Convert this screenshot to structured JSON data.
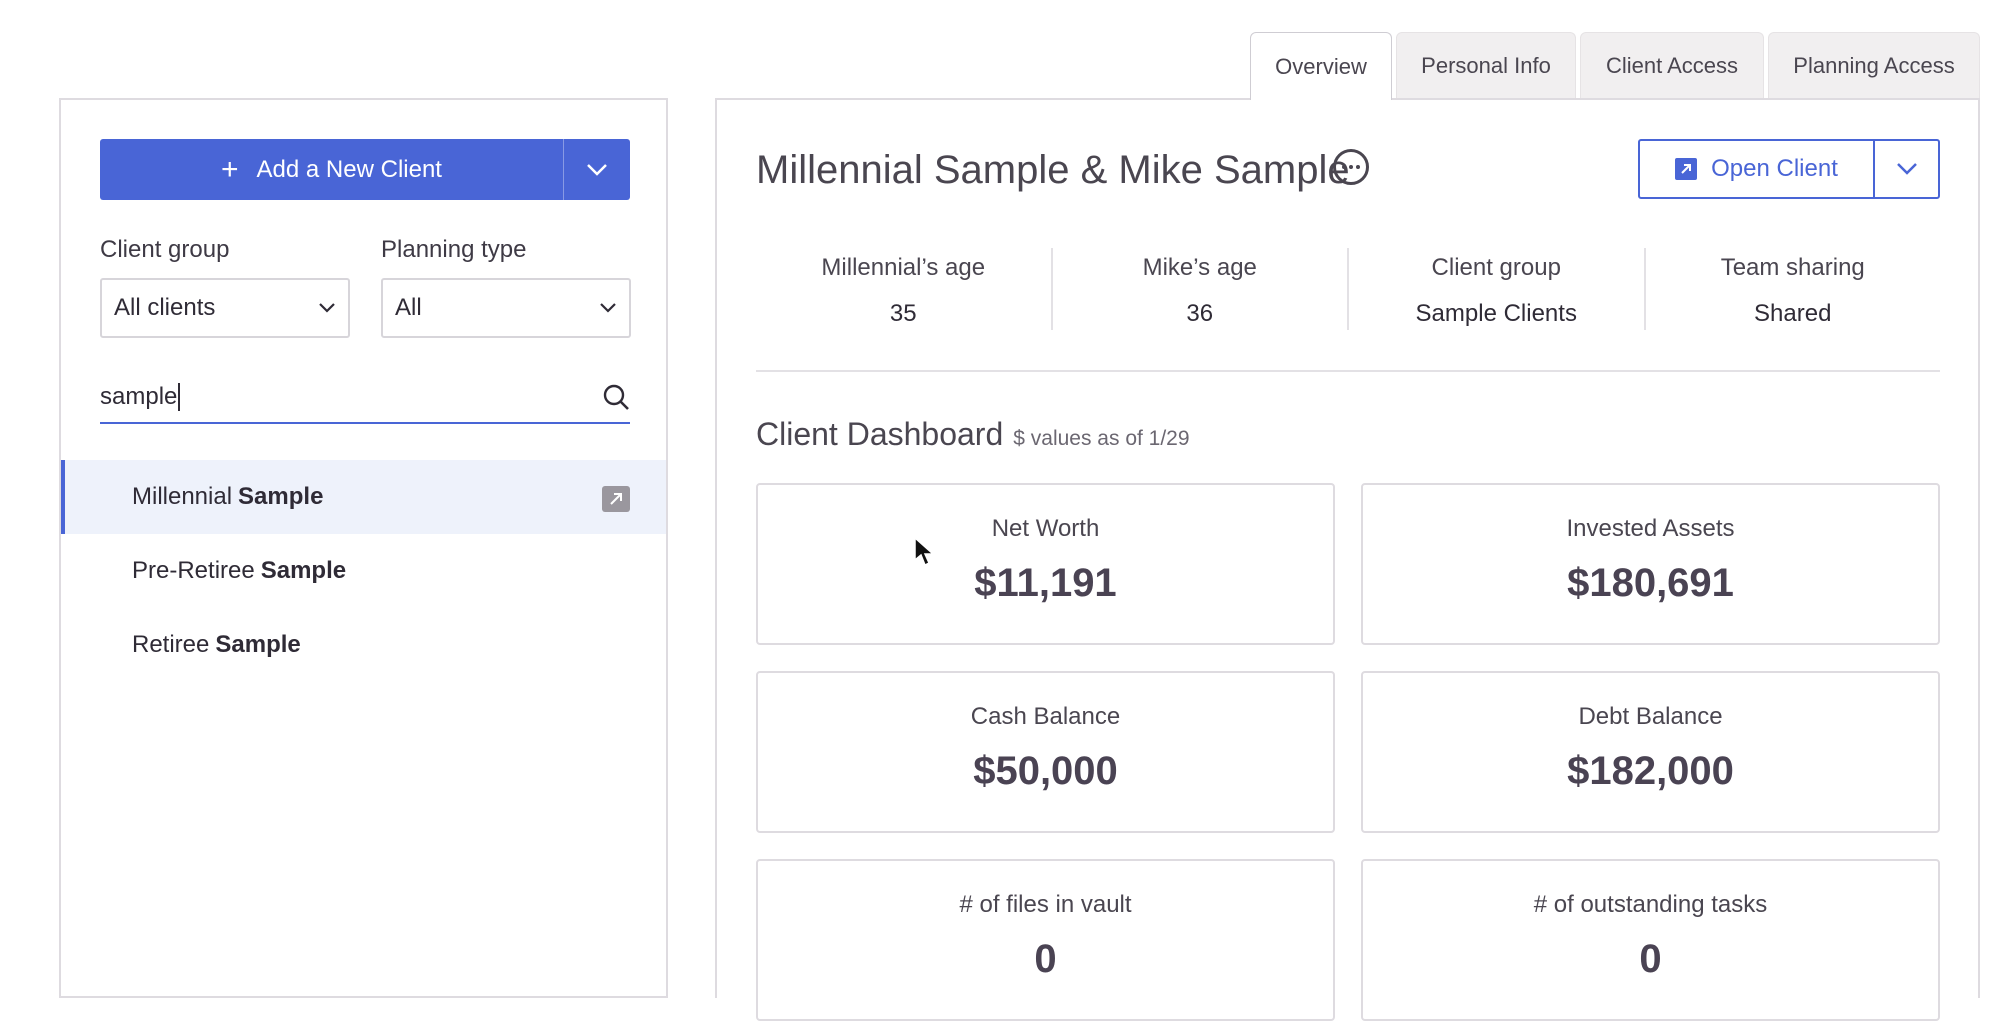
{
  "tabs": [
    {
      "label": "Overview",
      "active": true
    },
    {
      "label": "Personal Info",
      "active": false
    },
    {
      "label": "Client Access",
      "active": false
    },
    {
      "label": "Planning Access",
      "active": false
    }
  ],
  "sidebar": {
    "add_button_label": "Add a New Client",
    "client_group_label": "Client group",
    "client_group_value": "All clients",
    "planning_type_label": "Planning type",
    "planning_type_value": "All",
    "search_value": "sample",
    "clients": [
      {
        "first": "Millennial",
        "last": "Sample",
        "selected": true
      },
      {
        "first": "Pre-Retiree",
        "last": "Sample",
        "selected": false
      },
      {
        "first": "Retiree",
        "last": "Sample",
        "selected": false
      }
    ]
  },
  "main": {
    "client_name": "Millennial Sample & Mike Sample",
    "open_client_label": "Open Client",
    "info": [
      {
        "label": "Millennial’s age",
        "value": "35"
      },
      {
        "label": "Mike’s age",
        "value": "36"
      },
      {
        "label": "Client group",
        "value": "Sample Clients"
      },
      {
        "label": "Team sharing",
        "value": "Shared"
      }
    ],
    "dashboard_title": "Client Dashboard",
    "dashboard_subtitle": "$ values as of 1/29",
    "cards": [
      {
        "label": "Net Worth",
        "value": "$11,191"
      },
      {
        "label": "Invested Assets",
        "value": "$180,691"
      },
      {
        "label": "Cash Balance",
        "value": "$50,000"
      },
      {
        "label": "Debt Balance",
        "value": "$182,000"
      },
      {
        "label": "# of files in vault",
        "value": "0"
      },
      {
        "label": "# of outstanding tasks",
        "value": "0"
      }
    ]
  },
  "colors": {
    "accent": "#4965d6",
    "selected_row": "#eef2fb",
    "border": "#dedbe0"
  }
}
